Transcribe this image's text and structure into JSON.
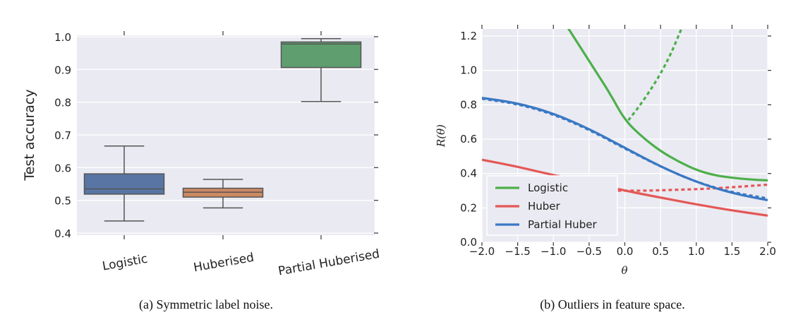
{
  "chart_data": [
    {
      "type": "box",
      "ylabel": "Test accuracy",
      "ylim": [
        0.4,
        1.0
      ],
      "yticks": [
        "0.4",
        "0.5",
        "0.6",
        "0.7",
        "0.8",
        "0.9",
        "1.0"
      ],
      "caption": "(a) Symmetric label noise.",
      "colors": {
        "background": "#eaeaf2",
        "grid": "#ffffff",
        "whisker": "#555555"
      },
      "boxes": [
        {
          "label": "Logistic",
          "color": "#5875a4",
          "min": 0.437,
          "q1": 0.519,
          "median": 0.535,
          "q3": 0.581,
          "max": 0.666
        },
        {
          "label": "Huberised",
          "color": "#cc8963",
          "min": 0.477,
          "q1": 0.51,
          "median": 0.525,
          "q3": 0.537,
          "max": 0.564
        },
        {
          "label": "Partial Huberised",
          "color": "#5f9e6e",
          "min": 0.802,
          "q1": 0.906,
          "median": 0.978,
          "q3": 0.984,
          "max": 0.994
        }
      ]
    },
    {
      "type": "line",
      "xlabel": "θ",
      "ylabel": "R(θ)",
      "xlim": [
        -2.0,
        2.0
      ],
      "ylim": [
        0.0,
        1.25
      ],
      "xticks": [
        "−2.0",
        "−1.5",
        "−1.0",
        "−0.5",
        "0.0",
        "0.5",
        "1.0",
        "1.5",
        "2.0"
      ],
      "yticks": [
        "0.0",
        "0.2",
        "0.4",
        "0.6",
        "0.8",
        "1.0",
        "1.2"
      ],
      "caption": "(b) Outliers in feature space.",
      "legend_position": "lower-left",
      "colors": {
        "background": "#eaeaf2",
        "grid": "#ffffff"
      },
      "series": [
        {
          "name": "Logistic",
          "color": "#4daf4a",
          "style": "solid",
          "x": [
            -0.8,
            -0.6,
            -0.4,
            -0.2,
            0.0,
            0.25,
            0.5,
            0.75,
            1.0,
            1.25,
            1.5,
            1.75,
            2.0
          ],
          "y": [
            1.25,
            1.12,
            0.99,
            0.86,
            0.71,
            0.61,
            0.53,
            0.47,
            0.42,
            0.39,
            0.375,
            0.365,
            0.36
          ]
        },
        {
          "name": "Logistic (dashed)",
          "color": "#4daf4a",
          "style": "dotted",
          "x": [
            0.05,
            0.2,
            0.35,
            0.5,
            0.65,
            0.8
          ],
          "y": [
            0.71,
            0.79,
            0.88,
            0.98,
            1.1,
            1.25
          ]
        },
        {
          "name": "Huber",
          "color": "#e45756",
          "style": "solid",
          "x": [
            -2.0,
            -1.5,
            -1.0,
            -0.5,
            0.0,
            0.5,
            1.0,
            1.5,
            2.0
          ],
          "y": [
            0.48,
            0.44,
            0.39,
            0.35,
            0.3,
            0.26,
            0.22,
            0.185,
            0.155
          ]
        },
        {
          "name": "Huber (dashed)",
          "color": "#e45756",
          "style": "dotted",
          "x": [
            -0.1,
            0.3,
            0.7,
            1.1,
            1.5,
            2.0
          ],
          "y": [
            0.3,
            0.3,
            0.305,
            0.31,
            0.32,
            0.335
          ]
        },
        {
          "name": "Partial Huber",
          "color": "#3a78c3",
          "style": "solid",
          "x": [
            -2.0,
            -1.5,
            -1.0,
            -0.5,
            0.0,
            0.5,
            1.0,
            1.5,
            2.0
          ],
          "y": [
            0.84,
            0.81,
            0.75,
            0.66,
            0.55,
            0.44,
            0.35,
            0.285,
            0.245
          ]
        },
        {
          "name": "Partial Huber (dashed)",
          "color": "#3a78c3",
          "style": "dotted",
          "x": [
            -2.0,
            -1.5,
            -1.0,
            -0.5,
            0.0,
            0.5,
            1.0,
            1.5,
            2.0
          ],
          "y": [
            0.835,
            0.805,
            0.745,
            0.655,
            0.545,
            0.44,
            0.35,
            0.29,
            0.255
          ]
        }
      ],
      "legend": [
        {
          "label": "Logistic",
          "color": "#4daf4a"
        },
        {
          "label": "Huber",
          "color": "#e45756"
        },
        {
          "label": "Partial Huber",
          "color": "#3a78c3"
        }
      ]
    }
  ]
}
